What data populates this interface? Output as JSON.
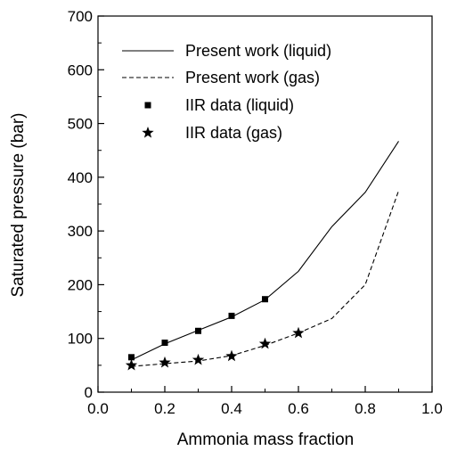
{
  "chart_data": {
    "type": "line",
    "title": "",
    "xlabel": "Ammonia mass fraction",
    "ylabel": "Saturated pressure (bar)",
    "xlim": [
      0.0,
      1.0
    ],
    "ylim": [
      0,
      700
    ],
    "x_ticks": [
      0.0,
      0.2,
      0.4,
      0.6,
      0.8,
      1.0
    ],
    "x_tick_labels": [
      "0.0",
      "0.2",
      "0.4",
      "0.6",
      "0.8",
      "1.0"
    ],
    "y_ticks": [
      0,
      100,
      200,
      300,
      400,
      500,
      600,
      700
    ],
    "y_tick_labels": [
      "0",
      "100",
      "200",
      "300",
      "400",
      "500",
      "600",
      "700"
    ],
    "grid": false,
    "legend_position": "top-left",
    "series": [
      {
        "name": "Present work (liquid)",
        "style": "solid-line",
        "color": "#000000",
        "x": [
          0.1,
          0.2,
          0.3,
          0.4,
          0.5,
          0.6,
          0.7,
          0.8,
          0.9
        ],
        "y": [
          60,
          90,
          115,
          140,
          172,
          225,
          308,
          372,
          467
        ]
      },
      {
        "name": "Present work (gas)",
        "style": "dashed-line",
        "color": "#000000",
        "x": [
          0.1,
          0.2,
          0.3,
          0.4,
          0.5,
          0.6,
          0.7,
          0.8,
          0.9
        ],
        "y": [
          48,
          53,
          58,
          68,
          87,
          110,
          137,
          200,
          375
        ]
      },
      {
        "name": "IIR data (liquid)",
        "style": "square-marker",
        "color": "#000000",
        "x": [
          0.1,
          0.2,
          0.3,
          0.4,
          0.5
        ],
        "y": [
          65,
          92,
          114,
          142,
          173
        ]
      },
      {
        "name": "IIR data (gas)",
        "style": "star-marker",
        "color": "#000000",
        "x": [
          0.1,
          0.2,
          0.3,
          0.4,
          0.5,
          0.6
        ],
        "y": [
          50,
          55,
          60,
          67,
          90,
          110
        ]
      }
    ]
  }
}
